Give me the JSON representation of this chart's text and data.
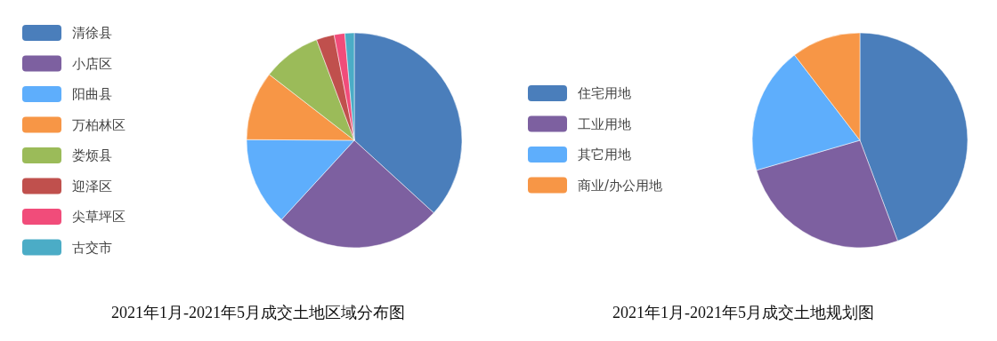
{
  "chart_data": [
    {
      "type": "pie",
      "title": "2021年1月-2021年5月成交土地区域分布图",
      "legend": "left",
      "categories": [
        "清徐县",
        "小店区",
        "阳曲县",
        "万柏林区",
        "娄烦县",
        "迎泽区",
        "尖草坪区",
        "古交市"
      ],
      "values": [
        36.8,
        25,
        13.3,
        10.4,
        8.8,
        2.7,
        1.6,
        1.4
      ],
      "colors": [
        "#4a7ebb",
        "#7d60a0",
        "#5eaefc",
        "#f79646",
        "#9bbb59",
        "#c0504d",
        "#f14c7a",
        "#4bacc6"
      ]
    },
    {
      "type": "pie",
      "title": "2021年1月-2021年5月成交土地规划图",
      "legend": "left",
      "categories": [
        "住宅用地",
        "工业用地",
        "其它用地",
        "商业/办公用地"
      ],
      "values": [
        44.3,
        26.2,
        19.1,
        10.4
      ],
      "colors": [
        "#4a7ebb",
        "#7d60a0",
        "#5eaefc",
        "#f79646"
      ]
    }
  ]
}
